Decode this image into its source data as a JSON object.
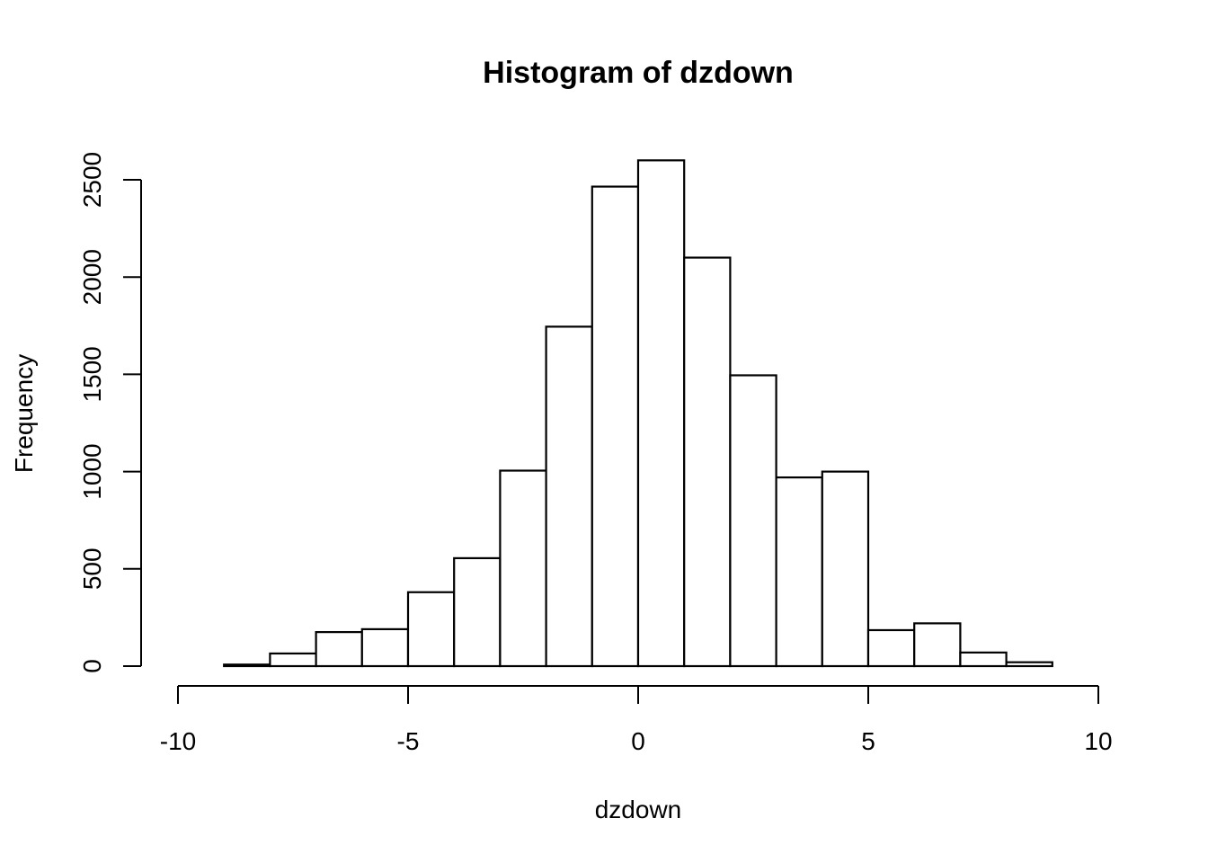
{
  "chart_data": {
    "type": "bar",
    "title": "Histogram of dzdown",
    "xlabel": "dzdown",
    "ylabel": "Frequency",
    "xlim": [
      -10,
      10
    ],
    "ylim": [
      0,
      2600
    ],
    "x_ticks": [
      -10,
      -5,
      0,
      5,
      10
    ],
    "y_ticks": [
      0,
      500,
      1000,
      1500,
      2000,
      2500
    ],
    "bins": [
      {
        "start": -10,
        "end": -9,
        "value": 0
      },
      {
        "start": -9,
        "end": -8,
        "value": 8
      },
      {
        "start": -8,
        "end": -7,
        "value": 65
      },
      {
        "start": -7,
        "end": -6,
        "value": 175
      },
      {
        "start": -6,
        "end": -5,
        "value": 190
      },
      {
        "start": -5,
        "end": -4,
        "value": 380
      },
      {
        "start": -4,
        "end": -3,
        "value": 555
      },
      {
        "start": -3,
        "end": -2,
        "value": 1005
      },
      {
        "start": -2,
        "end": -1,
        "value": 1745
      },
      {
        "start": -1,
        "end": 0,
        "value": 2465
      },
      {
        "start": 0,
        "end": 1,
        "value": 2600
      },
      {
        "start": 1,
        "end": 2,
        "value": 2100
      },
      {
        "start": 2,
        "end": 3,
        "value": 1495
      },
      {
        "start": 3,
        "end": 4,
        "value": 970
      },
      {
        "start": 4,
        "end": 5,
        "value": 1000
      },
      {
        "start": 5,
        "end": 6,
        "value": 185
      },
      {
        "start": 6,
        "end": 7,
        "value": 220
      },
      {
        "start": 7,
        "end": 8,
        "value": 70
      },
      {
        "start": 8,
        "end": 9,
        "value": 20
      },
      {
        "start": 9,
        "end": 10,
        "value": 0
      }
    ],
    "grid": false
  }
}
